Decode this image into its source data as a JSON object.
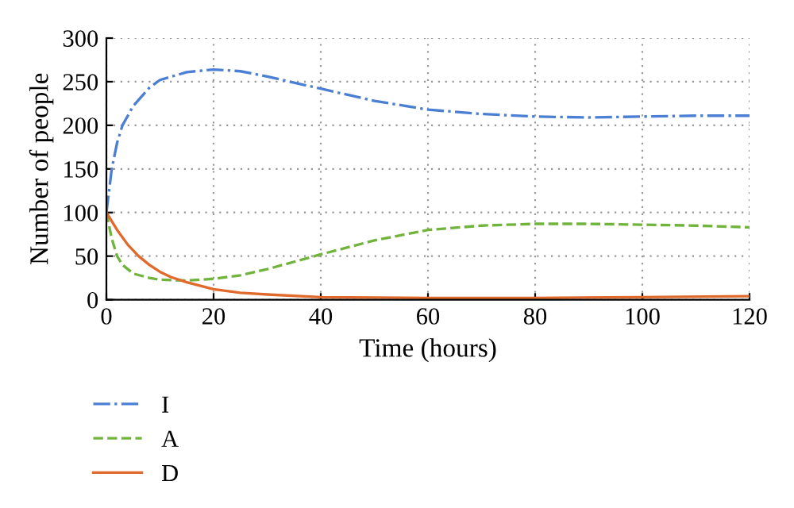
{
  "chart_data": {
    "type": "line",
    "xlabel": "Time (hours)",
    "ylabel": "Number of people",
    "xlim": [
      0,
      120
    ],
    "xticks": [
      0,
      20,
      40,
      60,
      80,
      100,
      120
    ],
    "ylim": [
      0,
      300
    ],
    "yticks": [
      0,
      50,
      100,
      150,
      200,
      250,
      300
    ],
    "grid": true,
    "legend": "bottom left",
    "series": [
      {
        "name": "I",
        "color": "#4a7fd4",
        "line_style": "dashdot",
        "x": [
          0,
          1,
          2,
          3,
          5,
          8,
          10,
          15,
          20,
          25,
          30,
          40,
          50,
          60,
          70,
          80,
          90,
          100,
          110,
          120
        ],
        "values": [
          100,
          150,
          180,
          200,
          222,
          243,
          252,
          261,
          264,
          262,
          256,
          242,
          228,
          218,
          213,
          210,
          209,
          210,
          211,
          211
        ]
      },
      {
        "name": "A",
        "color": "#70b43c",
        "line_style": "dashed",
        "x": [
          0,
          1,
          2,
          3,
          5,
          8,
          10,
          15,
          20,
          25,
          30,
          40,
          50,
          60,
          70,
          80,
          90,
          100,
          110,
          120
        ],
        "values": [
          100,
          70,
          50,
          40,
          30,
          25,
          23,
          22,
          24,
          28,
          35,
          52,
          68,
          80,
          85,
          87,
          87,
          86,
          85,
          83
        ]
      },
      {
        "name": "D",
        "color": "#e06a2c",
        "line_style": "solid",
        "x": [
          0,
          2,
          4,
          6,
          8,
          10,
          12,
          15,
          20,
          25,
          30,
          40,
          60,
          80,
          100,
          120
        ],
        "values": [
          100,
          80,
          63,
          50,
          40,
          32,
          26,
          20,
          12,
          8,
          6,
          3,
          2,
          2,
          3,
          4
        ]
      }
    ]
  }
}
